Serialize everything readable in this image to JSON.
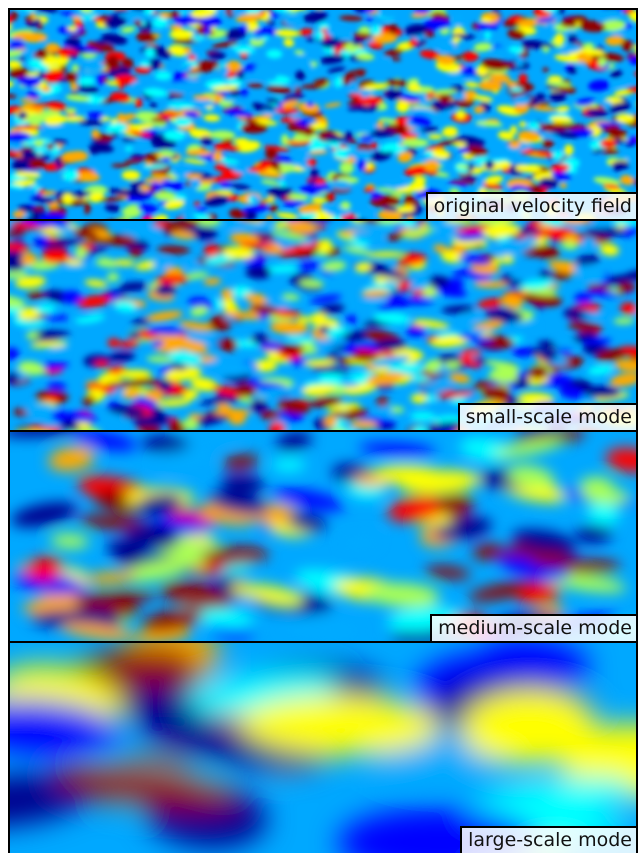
{
  "panels": [
    {
      "label": "original velocity field",
      "scale": "fine"
    },
    {
      "label": "small-scale mode",
      "scale": "small"
    },
    {
      "label": "medium-scale mode",
      "scale": "medium"
    },
    {
      "label": "large-scale mode",
      "scale": "large"
    }
  ],
  "colormap": [
    "#00008f",
    "#0000ff",
    "#00aaff",
    "#00ffff",
    "#aaff55",
    "#ffff00",
    "#ffaa00",
    "#ff0000",
    "#8f0000"
  ]
}
